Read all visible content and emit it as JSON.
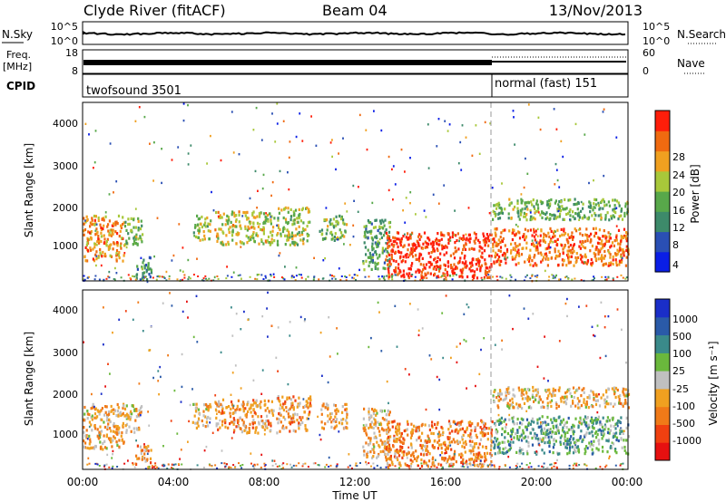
{
  "header": {
    "station": "Clyde River (fitACF)",
    "beam": "Beam 04",
    "date": "13/Nov/2013"
  },
  "noise_panel": {
    "left_label": "N.Sky",
    "left_ticks": [
      "10^5",
      "10^0"
    ],
    "right_ticks": [
      "10^5",
      "10^0"
    ],
    "right_label": "N.Search"
  },
  "freq_panel": {
    "left_label_line1": "Freq.",
    "left_label_line2": "[MHz]",
    "left_ticks": [
      "18",
      "8"
    ],
    "right_ticks": [
      "60",
      "0"
    ],
    "right_label": "Nave"
  },
  "cpid_panel": {
    "label": "CPID",
    "mode1": "twofsound 3501",
    "mode2": "normal (fast) 151"
  },
  "power_panel": {
    "ylabel": "Slant Range [km]",
    "yticks": [
      "4000",
      "3000",
      "2000",
      "1000"
    ],
    "colorbar_label": "Power [dB]",
    "colorbar_ticks": [
      "28",
      "24",
      "20",
      "16",
      "12",
      "8",
      "4"
    ]
  },
  "velocity_panel": {
    "ylabel": "Slant Range [km]",
    "yticks": [
      "4000",
      "3000",
      "2000",
      "1000"
    ],
    "colorbar_label": "Velocity [m s⁻¹]",
    "colorbar_ticks": [
      "1000",
      "500",
      "100",
      "25",
      "-25",
      "-100",
      "-500",
      "-1000"
    ]
  },
  "x_axis": {
    "label": "Time UT",
    "ticks": [
      "00:00",
      "04:00",
      "08:00",
      "12:00",
      "16:00",
      "20:00",
      "00:00"
    ]
  },
  "colors": {
    "power_scale": [
      "#0a1ee6",
      "#2a4fb4",
      "#3d8a6a",
      "#58a84a",
      "#a8c83a",
      "#f0a020",
      "#f06a10",
      "#ff1e0a"
    ],
    "velocity_scale": [
      "#e61010",
      "#f04010",
      "#f07a18",
      "#f0a020",
      "#c0c0c0",
      "#6ab83c",
      "#3a8a8a",
      "#2a5aa8",
      "#1a2ec8"
    ]
  },
  "chart_data": [
    {
      "type": "heatmap",
      "title": "Power",
      "xlabel": "Time UT",
      "ylabel": "Slant Range [km]",
      "xlim": [
        0,
        24
      ],
      "ylim": [
        200,
        4500
      ],
      "colorbar_range": [
        0,
        30
      ],
      "clusters": [
        {
          "t": [
            0.0,
            1.8
          ],
          "range": [
            700,
            1800
          ],
          "value": 22
        },
        {
          "t": [
            1.8,
            2.6
          ],
          "range": [
            1100,
            1800
          ],
          "value": 14
        },
        {
          "t": [
            2.3,
            3.0
          ],
          "range": [
            250,
            800
          ],
          "value": 10
        },
        {
          "t": [
            4.8,
            5.6
          ],
          "range": [
            1200,
            1800
          ],
          "value": 16
        },
        {
          "t": [
            5.8,
            8.4
          ],
          "range": [
            1100,
            1900
          ],
          "value": 18
        },
        {
          "t": [
            8.5,
            10.0
          ],
          "range": [
            1100,
            2000
          ],
          "value": 16
        },
        {
          "t": [
            10.4,
            11.6
          ],
          "range": [
            1200,
            1800
          ],
          "value": 14
        },
        {
          "t": [
            12.3,
            13.5
          ],
          "range": [
            500,
            1700
          ],
          "value": 12
        },
        {
          "t": [
            13.3,
            18.0
          ],
          "range": [
            300,
            1400
          ],
          "value": 28
        },
        {
          "t": [
            18.0,
            24.0
          ],
          "range": [
            600,
            1500
          ],
          "value": 24
        },
        {
          "t": [
            18.0,
            24.0
          ],
          "range": [
            1700,
            2200
          ],
          "value": 14
        }
      ]
    },
    {
      "type": "heatmap",
      "title": "Velocity",
      "xlabel": "Time UT",
      "ylabel": "Slant Range [km]",
      "xlim": [
        0,
        24
      ],
      "ylim": [
        200,
        4500
      ],
      "colorbar_range": [
        -1000,
        1000
      ],
      "clusters": [
        {
          "t": [
            0.0,
            1.8
          ],
          "range": [
            700,
            1800
          ],
          "value": -200
        },
        {
          "t": [
            1.8,
            2.6
          ],
          "range": [
            1100,
            1800
          ],
          "value": -150
        },
        {
          "t": [
            2.3,
            3.0
          ],
          "range": [
            250,
            800
          ],
          "value": -300
        },
        {
          "t": [
            4.8,
            5.6
          ],
          "range": [
            1200,
            1800
          ],
          "value": -200
        },
        {
          "t": [
            5.8,
            8.4
          ],
          "range": [
            1100,
            1900
          ],
          "value": -300
        },
        {
          "t": [
            8.5,
            10.0
          ],
          "range": [
            1100,
            2000
          ],
          "value": -300
        },
        {
          "t": [
            10.4,
            11.6
          ],
          "range": [
            1200,
            1800
          ],
          "value": -250
        },
        {
          "t": [
            12.3,
            13.5
          ],
          "range": [
            500,
            1700
          ],
          "value": -200
        },
        {
          "t": [
            13.3,
            18.0
          ],
          "range": [
            300,
            1400
          ],
          "value": -400
        },
        {
          "t": [
            18.0,
            24.0
          ],
          "range": [
            600,
            1500
          ],
          "value": 300
        },
        {
          "t": [
            18.0,
            24.0
          ],
          "range": [
            1700,
            2200
          ],
          "value": -150
        }
      ]
    }
  ]
}
